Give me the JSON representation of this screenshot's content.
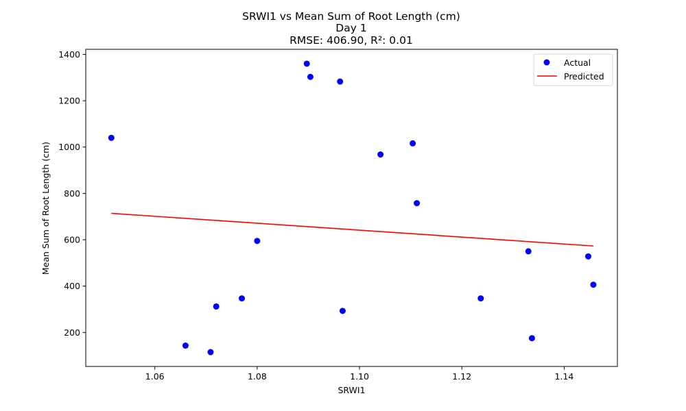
{
  "chart_data": {
    "type": "scatter",
    "title_lines": [
      "SRWI1 vs Mean Sum of Root Length (cm)",
      "Day 1",
      "RMSE: 406.90, R²: 0.01"
    ],
    "xlabel": "SRWI1",
    "ylabel": "Mean Sum of Root Length (cm)",
    "xlim": [
      1.0465,
      1.1504
    ],
    "ylim": [
      53,
      1422
    ],
    "x_ticks": [
      1.06,
      1.08,
      1.1,
      1.12,
      1.14
    ],
    "x_tick_labels": [
      "1.06",
      "1.08",
      "1.10",
      "1.12",
      "1.14"
    ],
    "y_ticks": [
      200,
      400,
      600,
      800,
      1000,
      1200,
      1400
    ],
    "y_tick_labels": [
      "200",
      "400",
      "600",
      "800",
      "1000",
      "1200",
      "1400"
    ],
    "grid": false,
    "legend_position": "top-right",
    "series": [
      {
        "name": "Actual",
        "kind": "scatter",
        "color": "#0000ff",
        "points": [
          [
            1.0515,
            1040
          ],
          [
            1.066,
            143
          ],
          [
            1.0709,
            115
          ],
          [
            1.072,
            312
          ],
          [
            1.077,
            347
          ],
          [
            1.08,
            595
          ],
          [
            1.0897,
            1360
          ],
          [
            1.0904,
            1303
          ],
          [
            1.0962,
            1283
          ],
          [
            1.0967,
            293
          ],
          [
            1.1041,
            968
          ],
          [
            1.1104,
            1016
          ],
          [
            1.1112,
            758
          ],
          [
            1.1237,
            347
          ],
          [
            1.133,
            550
          ],
          [
            1.1337,
            175
          ],
          [
            1.1447,
            528
          ],
          [
            1.1457,
            406
          ]
        ]
      },
      {
        "name": "Predicted",
        "kind": "line",
        "color": "#ff0000",
        "points": [
          [
            1.0515,
            714
          ],
          [
            1.1457,
            573
          ]
        ]
      }
    ]
  }
}
